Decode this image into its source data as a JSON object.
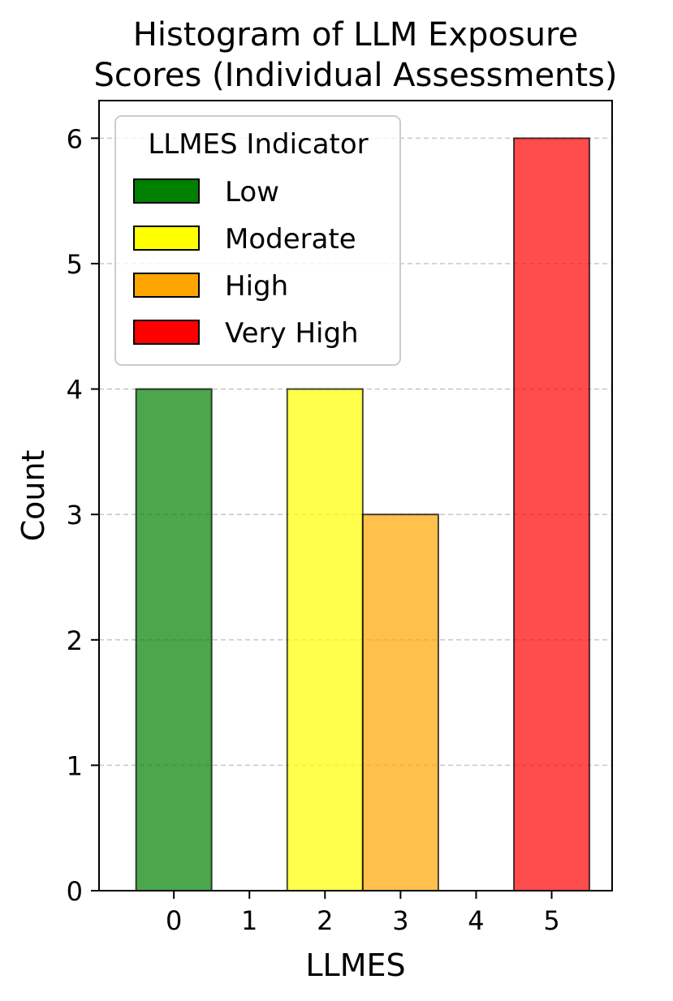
{
  "chart_data": {
    "type": "bar",
    "title_lines": [
      "Histogram of LLM Exposure",
      "Scores (Individual Assessments)"
    ],
    "xlabel": "LLMES",
    "ylabel": "Count",
    "x_ticks": [
      "0",
      "1",
      "2",
      "3",
      "4",
      "5"
    ],
    "y_ticks": [
      "0",
      "1",
      "2",
      "3",
      "4",
      "5",
      "6"
    ],
    "xlim": [
      -0.99,
      5.8
    ],
    "ylim": [
      0,
      6.3
    ],
    "grid": {
      "axis": "y",
      "style": "dashed"
    },
    "bars": [
      {
        "x": 0,
        "value": 4,
        "category": "Low"
      },
      {
        "x": 2,
        "value": 4,
        "category": "Moderate"
      },
      {
        "x": 3,
        "value": 3,
        "category": "High"
      },
      {
        "x": 5,
        "value": 6,
        "category": "Very High"
      }
    ],
    "bar_width": 1.0,
    "legend": {
      "title": "LLMES Indicator",
      "position": "top-left",
      "entries": [
        {
          "label": "Low",
          "color": "#008000"
        },
        {
          "label": "Moderate",
          "color": "#FFFF00"
        },
        {
          "label": "High",
          "color": "#FFA500"
        },
        {
          "label": "Very High",
          "color": "#FF0000"
        }
      ]
    },
    "bar_opacity": 0.7
  }
}
